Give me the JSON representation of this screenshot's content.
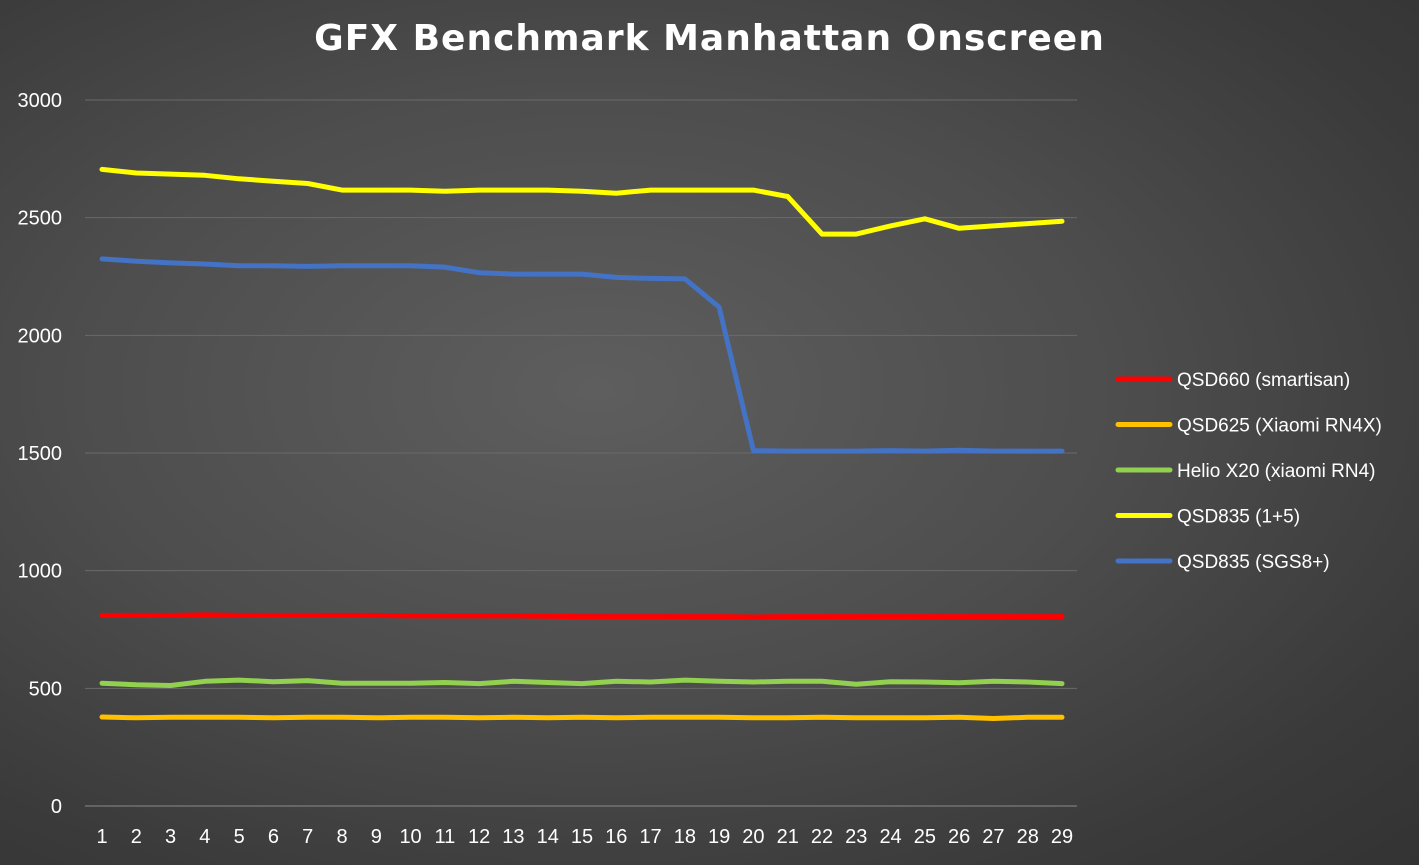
{
  "chart_data": {
    "type": "line",
    "title": "GFX Benchmark Manhattan Onscreen",
    "xlabel": "",
    "ylabel": "",
    "x": [
      "1",
      "2",
      "3",
      "4",
      "5",
      "6",
      "7",
      "8",
      "9",
      "10",
      "11",
      "12",
      "13",
      "14",
      "15",
      "16",
      "17",
      "18",
      "19",
      "20",
      "21",
      "22",
      "23",
      "24",
      "25",
      "26",
      "27",
      "28",
      "29"
    ],
    "ylim": [
      0,
      3000
    ],
    "yticks": [
      "0",
      "500",
      "1000",
      "1500",
      "2000",
      "2500",
      "3000"
    ],
    "grid": true,
    "legend_position": "right",
    "series": [
      {
        "name": "QSD660 (smartisan)",
        "color": "#ff0000",
        "values": [
          810,
          810,
          810,
          812,
          810,
          810,
          810,
          810,
          810,
          808,
          808,
          808,
          808,
          806,
          805,
          805,
          805,
          805,
          805,
          803,
          805,
          805,
          805,
          805,
          805,
          805,
          805,
          805,
          805
        ]
      },
      {
        "name": "QSD625 (Xiaomi RN4X)",
        "color": "#ffc000",
        "values": [
          378,
          375,
          377,
          377,
          377,
          375,
          377,
          377,
          375,
          377,
          377,
          375,
          377,
          375,
          377,
          375,
          377,
          377,
          377,
          375,
          375,
          377,
          375,
          375,
          375,
          377,
          372,
          377,
          377
        ]
      },
      {
        "name": "Helio X20 (xiaomi RN4)",
        "color": "#92d050",
        "values": [
          522,
          515,
          512,
          530,
          535,
          528,
          533,
          522,
          522,
          522,
          525,
          520,
          530,
          525,
          520,
          530,
          527,
          535,
          530,
          527,
          530,
          530,
          517,
          528,
          527,
          524,
          530,
          527,
          520
        ]
      },
      {
        "name": "QSD835 (1+5)",
        "color": "#ffff00",
        "values": [
          2705,
          2690,
          2685,
          2680,
          2665,
          2655,
          2645,
          2617,
          2617,
          2617,
          2612,
          2617,
          2617,
          2617,
          2612,
          2604,
          2617,
          2617,
          2617,
          2617,
          2590,
          2430,
          2430,
          2465,
          2495,
          2455,
          2465,
          2475,
          2485
        ]
      },
      {
        "name": "QSD835 (SGS8+)",
        "color": "#4472c4",
        "values": [
          2325,
          2315,
          2308,
          2303,
          2296,
          2296,
          2293,
          2296,
          2296,
          2296,
          2290,
          2266,
          2260,
          2260,
          2260,
          2246,
          2242,
          2240,
          2120,
          1510,
          1508,
          1508,
          1508,
          1510,
          1508,
          1512,
          1508,
          1508,
          1508
        ]
      }
    ]
  }
}
